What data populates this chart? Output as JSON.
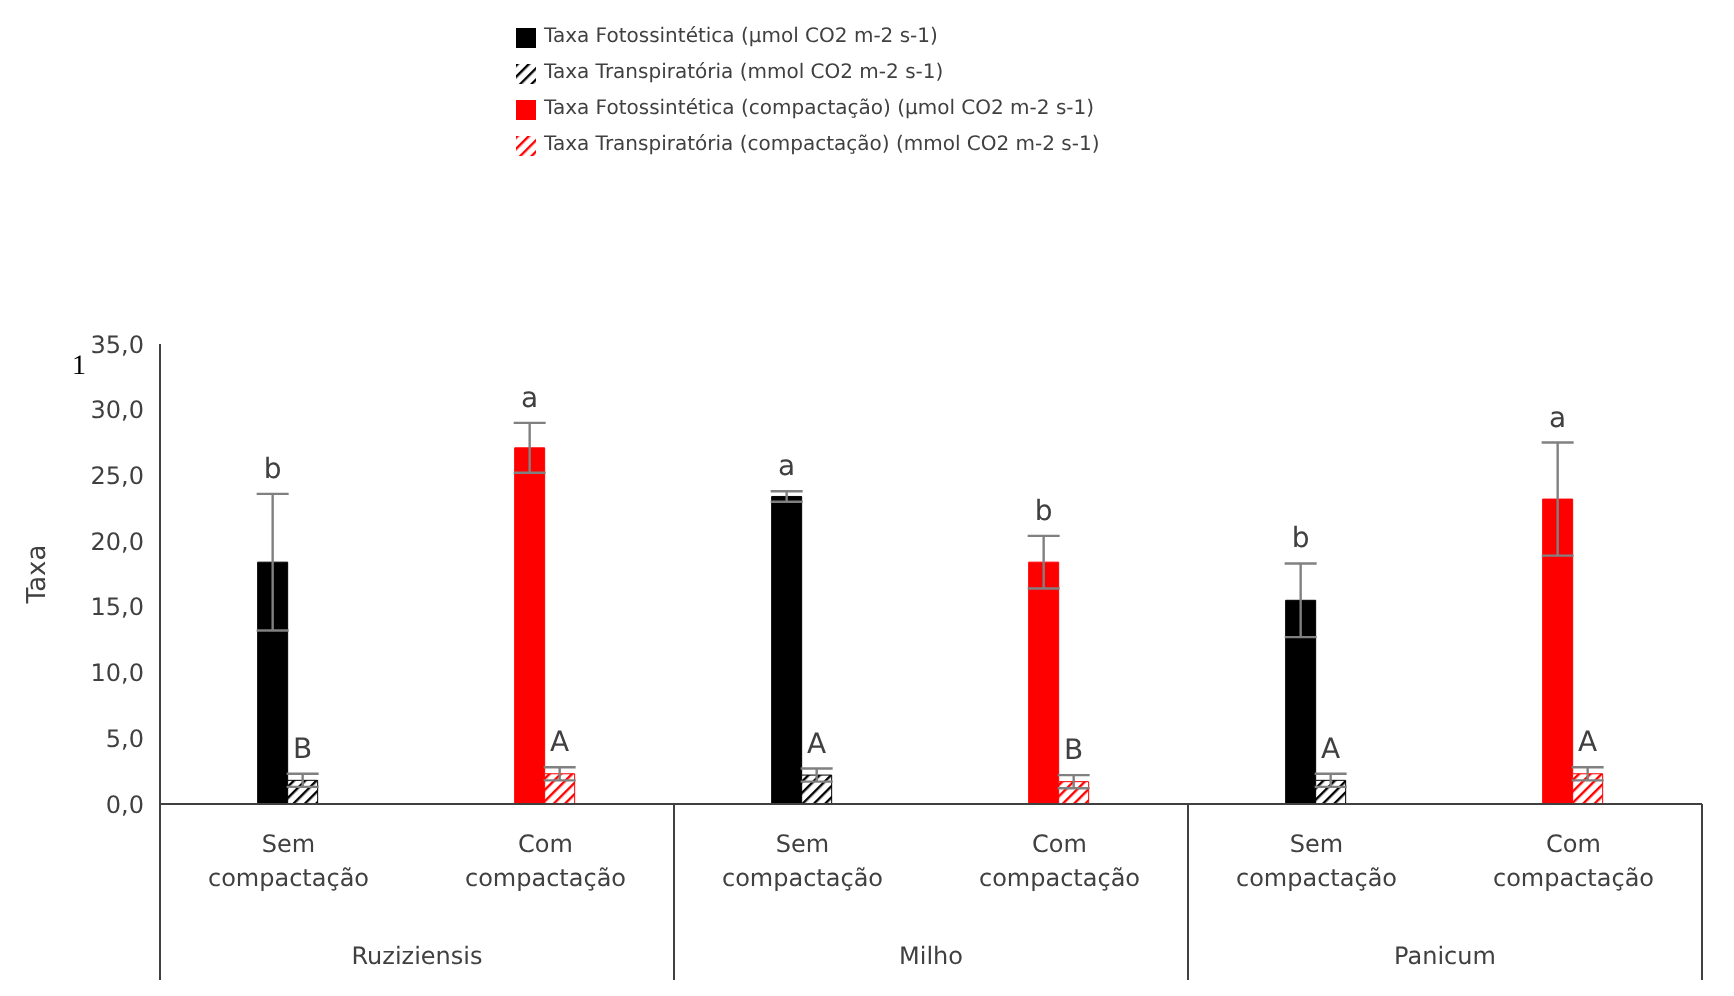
{
  "chart_data": {
    "type": "bar",
    "ylabel": "Taxa",
    "categories": [
      "Sem compactação",
      "Com compactação",
      "Sem compactação",
      "Com compactação",
      "Sem compactação",
      "Com compactação"
    ],
    "series": [
      {
        "name": "Taxa Fotossintética (µmol CO2 m-2 s-1)",
        "color": "#000000",
        "values": [
          18.4,
          null,
          23.4,
          null,
          15.5,
          null
        ],
        "errors": [
          5.2,
          null,
          0.4,
          null,
          2.8,
          null
        ],
        "value_labels": [
          "b",
          null,
          "a",
          null,
          "b",
          null
        ]
      },
      {
        "name": "Taxa Transpiratória (mmol CO2 m-2 s-1)",
        "color": "#000000",
        "values": [
          1.8,
          null,
          2.2,
          null,
          1.8,
          null
        ],
        "errors": [
          0.5,
          null,
          0.5,
          null,
          0.5,
          null
        ],
        "value_labels": [
          "B",
          null,
          "A",
          null,
          "A",
          null
        ]
      },
      {
        "name": "Taxa Fotossintética (compactação) (µmol CO2 m-2 s-1)",
        "color": "#ff0000",
        "values": [
          null,
          27.1,
          null,
          18.4,
          null,
          23.2
        ],
        "errors": [
          null,
          1.9,
          null,
          2.0,
          null,
          4.3
        ],
        "value_labels": [
          null,
          "a",
          null,
          "b",
          null,
          "a"
        ]
      },
      {
        "name": "Taxa Transpiratória (compactação) (mmol CO2 m-2 s-1)",
        "color": "#ff0000",
        "values": [
          null,
          2.3,
          null,
          1.7,
          null,
          2.3
        ],
        "errors": [
          null,
          0.5,
          null,
          0.5,
          null,
          0.5
        ],
        "value_labels": [
          null,
          "A",
          null,
          "B",
          null,
          "A"
        ]
      }
    ],
    "ylim": [
      0,
      35
    ],
    "yticks": [
      {
        "value": 0,
        "label": "0,0"
      },
      {
        "value": 5,
        "label": "5,0"
      },
      {
        "value": 10,
        "label": "10,0"
      },
      {
        "value": 15,
        "label": "15,0"
      },
      {
        "value": 20,
        "label": "20,0"
      },
      {
        "value": 25,
        "label": "25,0"
      },
      {
        "value": 30,
        "label": "30,0"
      },
      {
        "value": 35,
        "label": "35,0"
      }
    ],
    "grid": false,
    "legend": "top",
    "annotations": [
      "Ruziziensis",
      "Milho",
      "Panicum",
      "1"
    ]
  }
}
